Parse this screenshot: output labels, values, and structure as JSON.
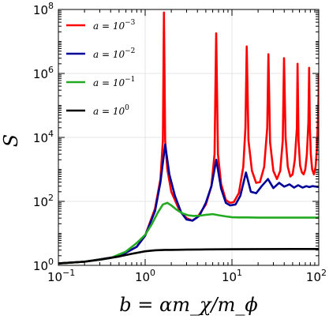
{
  "chart_data": {
    "type": "line",
    "title": "",
    "xlabel": "b = αm_χ/m_ϕ",
    "ylabel": "S",
    "x_scale": "log",
    "y_scale": "log",
    "xlim": [
      0.1,
      100
    ],
    "ylim": [
      1,
      100000000
    ],
    "grid": true,
    "legend_position": "top-left",
    "x_ticks": [
      {
        "value": 0.1,
        "base": "10",
        "exp": "−1"
      },
      {
        "value": 1,
        "base": "10",
        "exp": "0"
      },
      {
        "value": 10,
        "base": "10",
        "exp": "1"
      },
      {
        "value": 100,
        "base": "10",
        "exp": "2"
      }
    ],
    "y_ticks": [
      {
        "value": 1,
        "base": "10",
        "exp": "0"
      },
      {
        "value": 100,
        "base": "10",
        "exp": "2"
      },
      {
        "value": 10000,
        "base": "10",
        "exp": "4"
      },
      {
        "value": 1000000,
        "base": "10",
        "exp": "6"
      },
      {
        "value": 100000000,
        "base": "10",
        "exp": "8"
      }
    ],
    "series": [
      {
        "name": "a = 10⁻³",
        "legend_prefix": "a = 10",
        "legend_exp": "−3",
        "color": "#ff0000",
        "x": [
          0.1,
          0.2,
          0.5,
          0.8,
          1.0,
          1.3,
          1.5,
          1.6,
          1.645,
          1.7,
          1.8,
          2.0,
          2.5,
          3.0,
          3.5,
          4.0,
          5.0,
          5.8,
          6.3,
          6.58,
          6.9,
          7.5,
          8.5,
          9.5,
          10.5,
          12.0,
          13.5,
          14.3,
          14.8,
          15.5,
          17.0,
          19.0,
          21.0,
          23.5,
          25.5,
          26.3,
          27.5,
          30.0,
          33.0,
          36.0,
          38.5,
          39.8,
          41.5,
          44.0,
          47.0,
          50.0,
          53.0,
          56.0,
          57.0,
          58.5,
          61.0,
          64.0,
          67.0,
          70.0,
          73.0,
          76.0,
          77.5,
          79.0,
          81.0,
          84.0,
          88.0,
          92.0,
          95.0,
          98.0,
          99.5,
          100.0
        ],
        "y": [
          1.15,
          1.3,
          1.9,
          3.8,
          8.5,
          60,
          500,
          8000,
          80000000,
          8000,
          1000,
          200,
          50,
          30,
          25,
          32,
          80,
          300,
          3000,
          18000000,
          3000,
          350,
          110,
          90,
          95,
          180,
          1200,
          20000,
          7000000,
          8000,
          900,
          380,
          400,
          1200,
          20000,
          4000000,
          7000,
          900,
          500,
          900,
          8000,
          3000000,
          10000,
          1200,
          600,
          700,
          2000,
          20000,
          2000000,
          8000,
          1300,
          800,
          700,
          1000,
          3000,
          30000,
          1500000,
          20000,
          3000,
          1000,
          700,
          1200,
          4000,
          40000,
          200000,
          1000000
        ]
      },
      {
        "name": "a = 10⁻²",
        "legend_prefix": "a = 10",
        "legend_exp": "−2",
        "color": "#000099",
        "x": [
          0.1,
          0.2,
          0.5,
          0.8,
          1.0,
          1.3,
          1.5,
          1.7,
          1.9,
          2.2,
          2.6,
          3.0,
          3.5,
          4.2,
          5.0,
          5.8,
          6.6,
          7.5,
          8.5,
          9.5,
          11.0,
          12.5,
          14.5,
          16.5,
          19.0,
          22.0,
          26.0,
          30.0,
          35.0,
          40.0,
          46.0,
          52.0,
          58.0,
          65.0,
          72.0,
          78.0,
          85.0,
          92.0,
          100.0
        ],
        "y": [
          1.15,
          1.3,
          1.9,
          3.8,
          8.5,
          50,
          400,
          6000,
          700,
          150,
          45,
          27,
          25,
          35,
          90,
          300,
          2000,
          250,
          90,
          75,
          80,
          150,
          800,
          200,
          180,
          300,
          500,
          260,
          380,
          290,
          340,
          270,
          320,
          270,
          300,
          280,
          300,
          290,
          280
        ]
      },
      {
        "name": "a = 10⁻¹",
        "legend_prefix": "a = 10",
        "legend_exp": "−1",
        "color": "#22aa22",
        "x": [
          0.1,
          0.2,
          0.4,
          0.6,
          0.8,
          1.0,
          1.2,
          1.4,
          1.6,
          1.8,
          2.0,
          2.3,
          2.7,
          3.1,
          3.6,
          4.2,
          5.0,
          6.0,
          7.0,
          8.5,
          10.0,
          12.0,
          15.0,
          20.0,
          30.0,
          50.0,
          100.0
        ],
        "y": [
          1.15,
          1.3,
          1.7,
          2.7,
          5.0,
          9.0,
          20,
          45,
          80,
          90,
          75,
          55,
          42,
          37,
          35,
          35.5,
          38,
          40,
          37,
          34,
          32,
          31.5,
          31.5,
          31,
          31,
          31,
          31
        ]
      },
      {
        "name": "a = 10⁰",
        "legend_prefix": "a = 10",
        "legend_exp": "0",
        "color": "#000000",
        "x": [
          0.1,
          0.2,
          0.3,
          0.5,
          0.7,
          1.0,
          1.3,
          1.7,
          2.0,
          3.0,
          5.0,
          10.0,
          20.0,
          50.0,
          100.0
        ],
        "y": [
          1.15,
          1.3,
          1.5,
          1.9,
          2.3,
          2.75,
          2.95,
          3.05,
          3.05,
          3.1,
          3.15,
          3.2,
          3.22,
          3.25,
          3.25
        ]
      }
    ]
  }
}
